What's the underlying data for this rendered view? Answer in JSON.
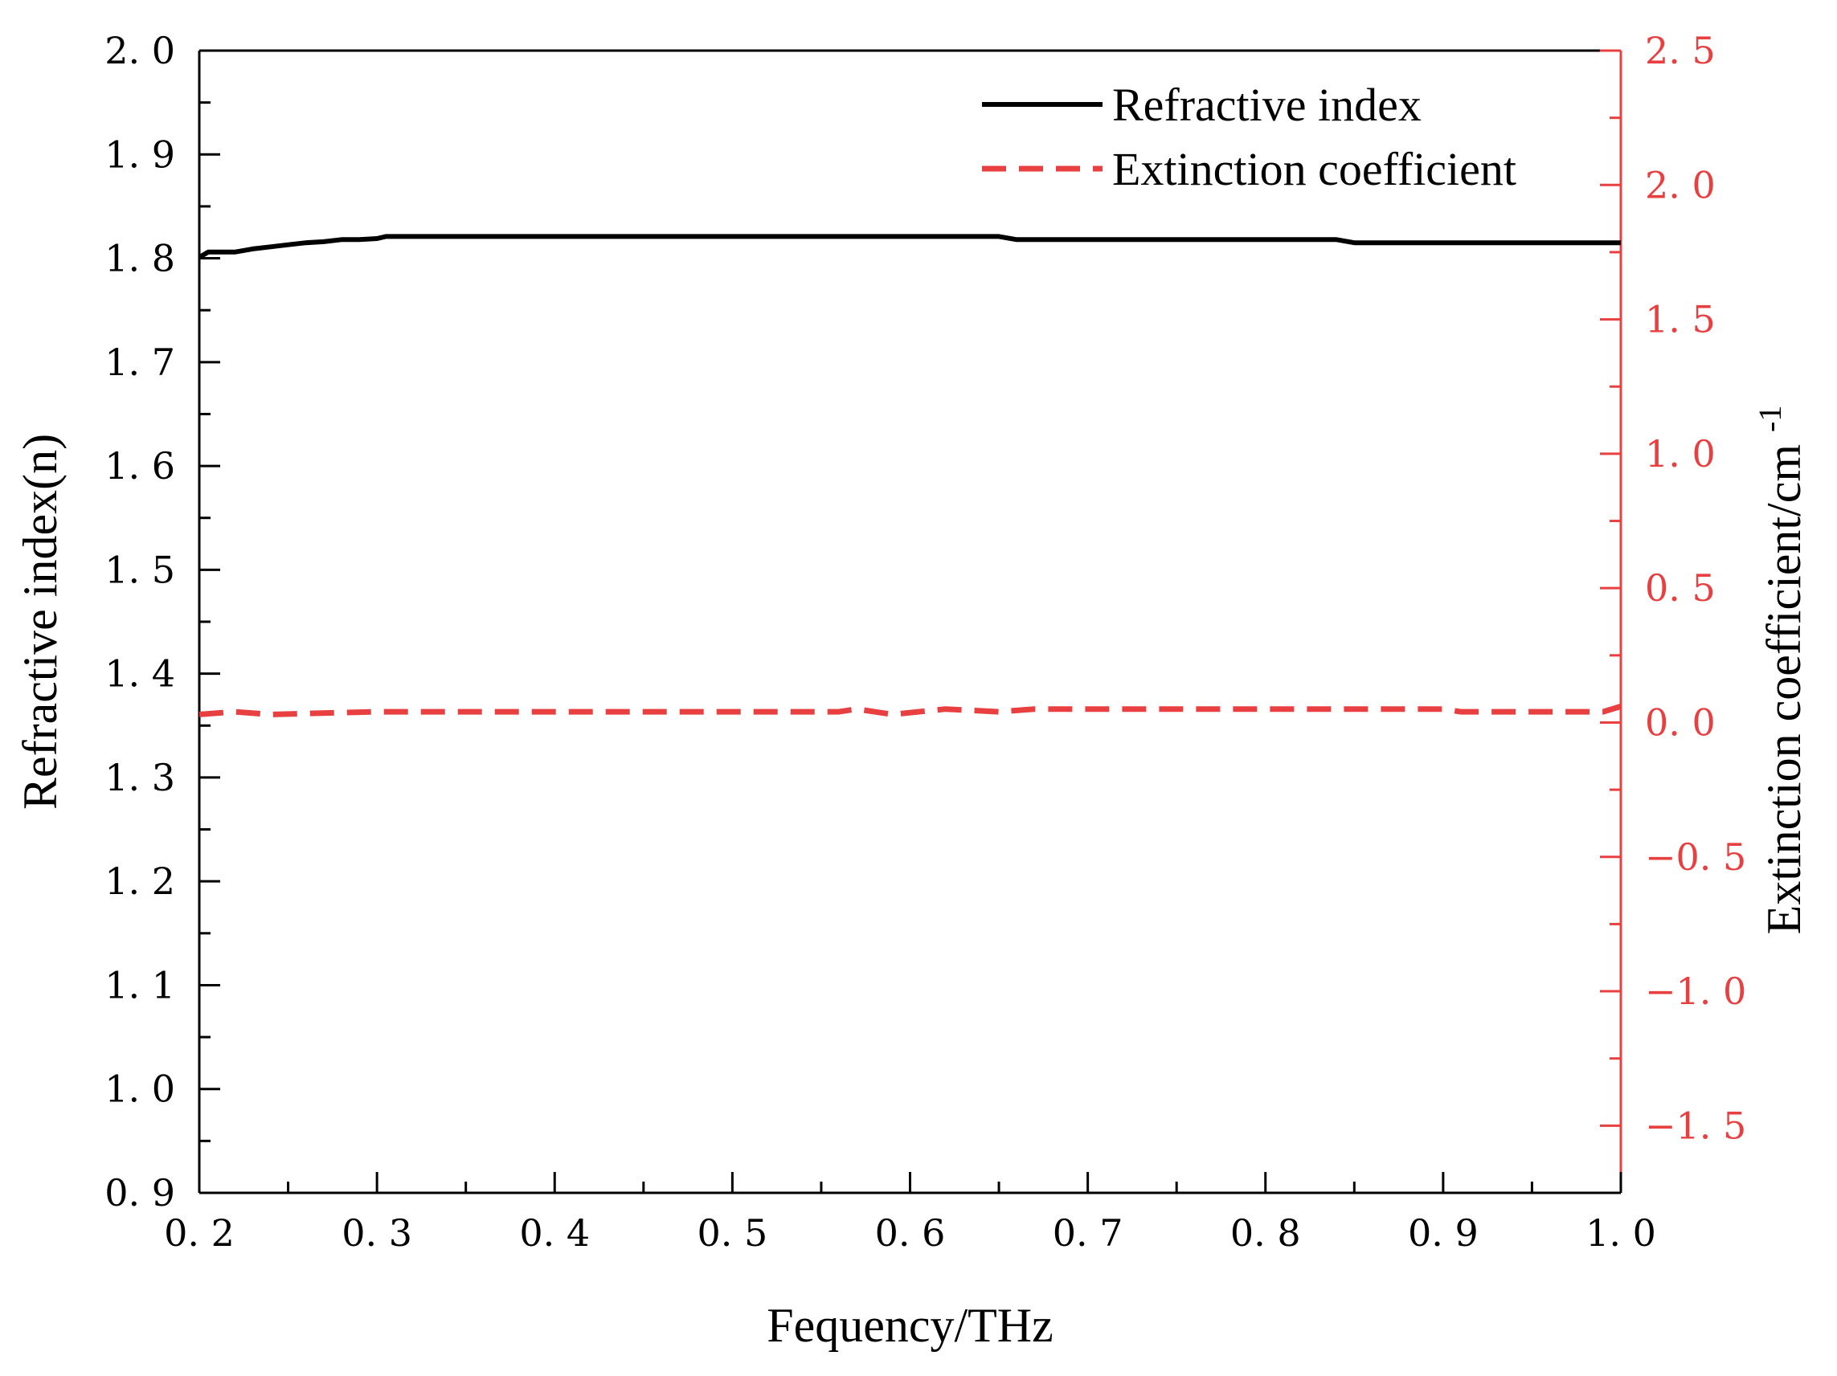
{
  "chart_data": {
    "type": "line",
    "title": "",
    "xlabel": "Fequency/THz",
    "ylabel": "Refractive index(n)",
    "y2label": "Extinction coefficient/cm",
    "y2label_sup": "-1",
    "xlim": [
      0.2,
      1.0
    ],
    "ylim": [
      0.9,
      2.0
    ],
    "y2lim": [
      -1.75,
      2.5
    ],
    "x_ticks": [
      {
        "value": 0.2,
        "label": "0. 2"
      },
      {
        "value": 0.3,
        "label": "0. 3"
      },
      {
        "value": 0.4,
        "label": "0. 4"
      },
      {
        "value": 0.5,
        "label": "0. 5"
      },
      {
        "value": 0.6,
        "label": "0. 6"
      },
      {
        "value": 0.7,
        "label": "0. 7"
      },
      {
        "value": 0.8,
        "label": "0. 8"
      },
      {
        "value": 0.9,
        "label": "0. 9"
      },
      {
        "value": 1.0,
        "label": "1. 0"
      }
    ],
    "y_ticks": [
      {
        "value": 0.9,
        "label": "0. 9"
      },
      {
        "value": 1.0,
        "label": "1. 0"
      },
      {
        "value": 1.1,
        "label": "1. 1"
      },
      {
        "value": 1.2,
        "label": "1. 2"
      },
      {
        "value": 1.3,
        "label": "1. 3"
      },
      {
        "value": 1.4,
        "label": "1. 4"
      },
      {
        "value": 1.5,
        "label": "1. 5"
      },
      {
        "value": 1.6,
        "label": "1. 6"
      },
      {
        "value": 1.7,
        "label": "1. 7"
      },
      {
        "value": 1.8,
        "label": "1. 8"
      },
      {
        "value": 1.9,
        "label": "1. 9"
      },
      {
        "value": 2.0,
        "label": "2. 0"
      }
    ],
    "y2_ticks": [
      {
        "value": -1.5,
        "label": "−1. 5"
      },
      {
        "value": -1.0,
        "label": "−1. 0"
      },
      {
        "value": -0.5,
        "label": "−0. 5"
      },
      {
        "value": 0.0,
        "label": "0. 0"
      },
      {
        "value": 0.5,
        "label": "0. 5"
      },
      {
        "value": 1.0,
        "label": "1. 0"
      },
      {
        "value": 1.5,
        "label": "1. 5"
      },
      {
        "value": 2.0,
        "label": "2. 0"
      },
      {
        "value": 2.5,
        "label": "2. 5"
      }
    ],
    "series": [
      {
        "name": "Refractive index",
        "axis": "left",
        "color": "#000000",
        "style": "solid",
        "x": [
          0.2,
          0.205,
          0.22,
          0.23,
          0.24,
          0.25,
          0.26,
          0.27,
          0.28,
          0.29,
          0.3,
          0.305,
          0.35,
          0.45,
          0.55,
          0.6,
          0.65,
          0.66,
          0.7,
          0.75,
          0.8,
          0.84,
          0.85,
          0.9,
          0.95,
          1.0
        ],
        "y": [
          1.801,
          1.806,
          1.806,
          1.809,
          1.811,
          1.813,
          1.815,
          1.816,
          1.818,
          1.818,
          1.819,
          1.821,
          1.821,
          1.821,
          1.821,
          1.821,
          1.821,
          1.818,
          1.818,
          1.818,
          1.818,
          1.818,
          1.815,
          1.815,
          1.815,
          1.815
        ]
      },
      {
        "name": "Extinction coefficient",
        "axis": "right",
        "color": "#e84040",
        "style": "dashed",
        "x": [
          0.2,
          0.22,
          0.24,
          0.3,
          0.4,
          0.5,
          0.56,
          0.57,
          0.58,
          0.59,
          0.62,
          0.65,
          0.67,
          0.7,
          0.75,
          0.77,
          0.8,
          0.85,
          0.9,
          0.91,
          0.95,
          0.99,
          1.0
        ],
        "y": [
          0.03,
          0.04,
          0.03,
          0.04,
          0.04,
          0.04,
          0.04,
          0.05,
          0.04,
          0.03,
          0.05,
          0.04,
          0.05,
          0.05,
          0.05,
          0.05,
          0.05,
          0.05,
          0.05,
          0.04,
          0.04,
          0.04,
          0.06
        ]
      }
    ],
    "legend": {
      "position": "top-right",
      "entries": [
        "Refractive index",
        "Extinction coefficient"
      ]
    },
    "grid": false
  },
  "colors": {
    "left_axis": "#000000",
    "right_axis": "#e84040"
  }
}
